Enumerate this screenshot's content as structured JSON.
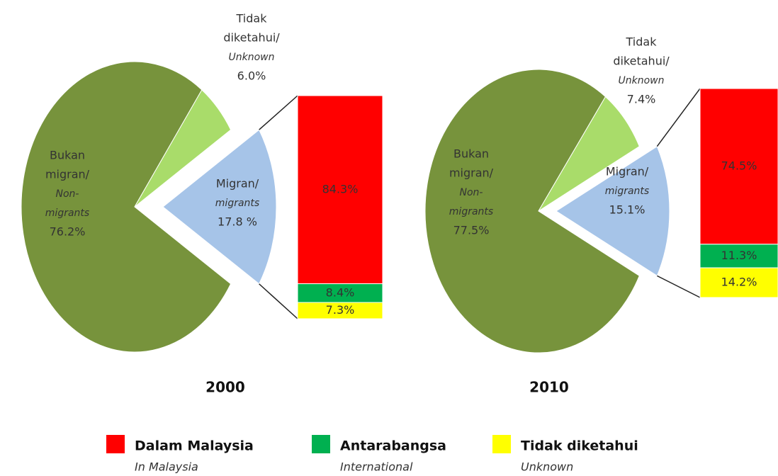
{
  "chart_data": [
    {
      "type": "pie",
      "title": "2000",
      "slices": [
        {
          "malay": [
            "Bukan",
            "migran/"
          ],
          "english": [
            "Non-",
            "migrants"
          ],
          "value": 76.2,
          "value_label": "76.2%",
          "color": "#77933c"
        },
        {
          "malay": [
            "Migran/"
          ],
          "english": [
            "migrants"
          ],
          "value": 17.8,
          "value_label": "17.8 %",
          "color": "#a6c4e8"
        },
        {
          "malay": [
            "Tidak",
            "diketahui/"
          ],
          "english": [
            "Unknown"
          ],
          "value": 6.0,
          "value_label": "6.0%",
          "color": "#a9dc6a"
        }
      ],
      "breakdown": {
        "values": [
          84.3,
          8.4,
          7.3
        ],
        "value_labels": [
          "84.3%",
          "8.4%",
          "7.3%"
        ]
      }
    },
    {
      "type": "pie",
      "title": "2010",
      "slices": [
        {
          "malay": [
            "Bukan",
            "migran/"
          ],
          "english": [
            "Non-",
            "migrants"
          ],
          "value": 77.5,
          "value_label": "77.5%",
          "color": "#77933c"
        },
        {
          "malay": [
            "Migran/"
          ],
          "english": [
            "migrants"
          ],
          "value": 15.1,
          "value_label": "15.1%",
          "color": "#a6c4e8"
        },
        {
          "malay": [
            "Tidak",
            "diketahui/"
          ],
          "english": [
            "Unknown"
          ],
          "value": 7.4,
          "value_label": "7.4%",
          "color": "#a9dc6a"
        }
      ],
      "breakdown": {
        "values": [
          74.5,
          11.3,
          14.2
        ],
        "value_labels": [
          "74.5%",
          "11.3%",
          "14.2%"
        ]
      }
    }
  ],
  "legend": {
    "items": [
      {
        "label": "Dalam Malaysia",
        "sublabel": "In Malaysia",
        "color": "#ff0000"
      },
      {
        "label": "Antarabangsa",
        "sublabel": "International",
        "color": "#00b050"
      },
      {
        "label": "Tidak diketahui",
        "sublabel": "Unknown",
        "color": "#ffff00"
      }
    ]
  }
}
